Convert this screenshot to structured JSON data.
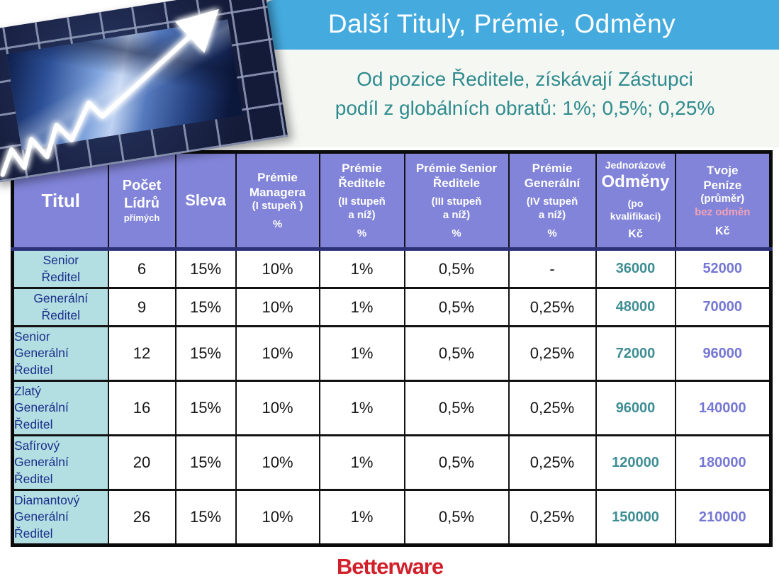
{
  "slide": {
    "title": "Další Tituly, Prémie, Odměny",
    "subtitle_line1": "Od pozice Ředitele, získávají Zástupci",
    "subtitle_line2": "podíl z globálních obratů: 1%; 0,5%; 0,25%",
    "logo": "Betterware"
  },
  "colors": {
    "header_bar": "#45abdf",
    "subtitle_text": "#2f8b8e",
    "table_header_bg": "#8184d8",
    "title_col_bg": "#b3dfe3",
    "title_col_text": "#1b2f8a",
    "reward_value_text": "#3f8e94",
    "money_value_text": "#7577d4",
    "pink_text": "#f2a2b8",
    "logo_red": "#d2202a"
  },
  "decor": {
    "image_name": "money-growth-arrow-photo"
  },
  "table": {
    "columns": [
      {
        "name": "titul",
        "lines": [
          {
            "t": "Titul",
            "s": "xl"
          }
        ]
      },
      {
        "name": "pocet-lidru",
        "lines": [
          {
            "t": "Počet",
            "s": "lg"
          },
          {
            "t": "Lídrů",
            "s": "lg"
          },
          {
            "t": "přímých",
            "s": "sm"
          }
        ]
      },
      {
        "name": "sleva",
        "lines": [
          {
            "t": "Sleva",
            "s": "lg2"
          }
        ]
      },
      {
        "name": "premie-managera",
        "lines": [
          {
            "t": "Prémie",
            "s": "md"
          },
          {
            "t": "Managera",
            "s": "md"
          },
          {
            "t": "(I stupeň )",
            "s": "md2"
          },
          {
            "t": "%",
            "s": "md2 gap"
          }
        ]
      },
      {
        "name": "premie-reditele",
        "lines": [
          {
            "t": "Prémie",
            "s": "md"
          },
          {
            "t": "Ředitele",
            "s": "md"
          },
          {
            "t": "(II stupeň",
            "s": "md2 gap"
          },
          {
            "t": "a níž)",
            "s": "md2"
          },
          {
            "t": "%",
            "s": "md2 gap"
          }
        ]
      },
      {
        "name": "premie-senior-reditele",
        "lines": [
          {
            "t": "Prémie Senior",
            "s": "md"
          },
          {
            "t": "Ředitele",
            "s": "md"
          },
          {
            "t": "(III stupeň",
            "s": "md2 gap"
          },
          {
            "t": "a níž)",
            "s": "md2"
          },
          {
            "t": "%",
            "s": "md2 gap"
          }
        ]
      },
      {
        "name": "premie-generalni",
        "lines": [
          {
            "t": "Prémie",
            "s": "md"
          },
          {
            "t": "Generální",
            "s": "md"
          },
          {
            "t": "(IV stupeň",
            "s": "md2 gap"
          },
          {
            "t": "a níž)",
            "s": "md2"
          },
          {
            "t": "%",
            "s": "md2 gap"
          }
        ]
      },
      {
        "name": "jednorazove-odmeny",
        "lines": [
          {
            "t": "Jednorázové",
            "s": "sm2"
          },
          {
            "t": "Odměny",
            "s": "xl2"
          },
          {
            "t": "(po",
            "s": "sm2 gap"
          },
          {
            "t": "kvalifikaci)",
            "s": "sm2"
          },
          {
            "t": "Kč",
            "s": "kc gap"
          }
        ]
      },
      {
        "name": "tvoje-penize",
        "lines": [
          {
            "t": "Tvoje",
            "s": "md"
          },
          {
            "t": "Peníze",
            "s": "md"
          },
          {
            "t": "(průměr)",
            "s": "md3"
          },
          {
            "t": "bez odměn",
            "s": "pink"
          },
          {
            "t": "Kč",
            "s": "kc gap"
          }
        ]
      }
    ],
    "rows": [
      {
        "align": "center",
        "height": "short",
        "cells": [
          "Senior\nŘeditel",
          "6",
          "15%",
          "10%",
          "1%",
          "0,5%",
          "-",
          "36000",
          "52000"
        ]
      },
      {
        "align": "center",
        "height": "short",
        "cells": [
          "Generální\nŘeditel",
          "9",
          "15%",
          "10%",
          "1%",
          "0,5%",
          "0,25%",
          "48000",
          "70000"
        ]
      },
      {
        "align": "left",
        "height": "tall",
        "cells": [
          "Senior\nGenerální\nŘeditel",
          "12",
          "15%",
          "10%",
          "1%",
          "0,5%",
          "0,25%",
          "72000",
          "96000"
        ]
      },
      {
        "align": "left",
        "height": "tall",
        "cells": [
          "Zlatý\nGenerální\nŘeditel",
          "16",
          "15%",
          "10%",
          "1%",
          "0,5%",
          "0,25%",
          "96000",
          "140000"
        ]
      },
      {
        "align": "left",
        "height": "tall",
        "cells": [
          "Safírový\nGenerální\nŘeditel",
          "20",
          "15%",
          "10%",
          "1%",
          "0,5%",
          "0,25%",
          "120000",
          "180000"
        ]
      },
      {
        "align": "left",
        "height": "tall",
        "cells": [
          "Diamantový\nGenerální\nŘeditel",
          "26",
          "15%",
          "10%",
          "1%",
          "0,5%",
          "0,25%",
          "150000",
          "210000"
        ]
      }
    ]
  }
}
